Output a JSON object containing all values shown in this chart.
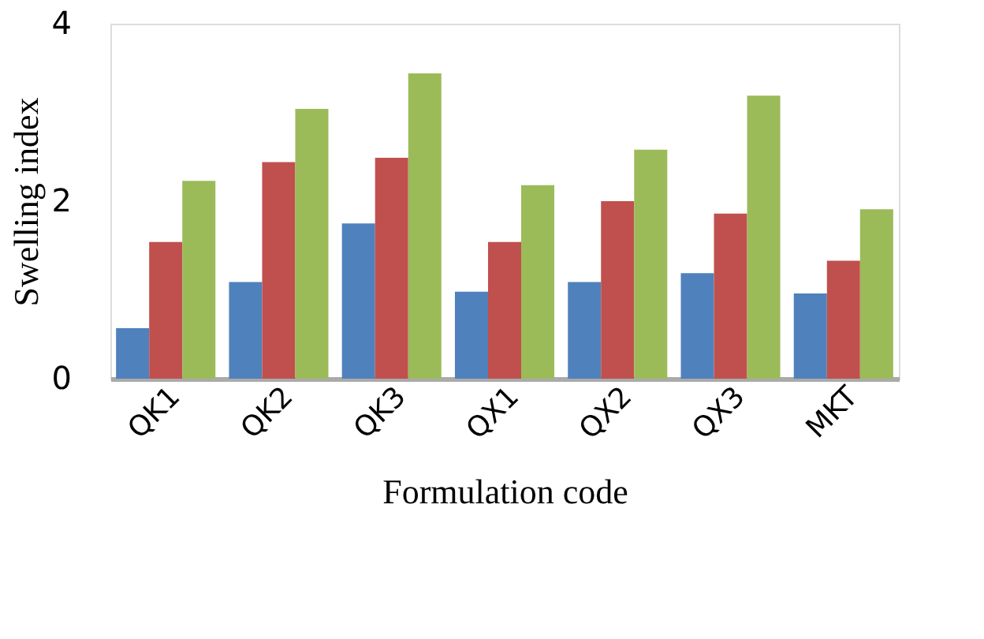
{
  "chart_data": {
    "type": "bar",
    "xlabel": "Formulation code",
    "ylabel": "Swelling index",
    "categories": [
      "QK1",
      "QK2",
      "QK3",
      "QX1",
      "QX2",
      "QX3",
      "MKT"
    ],
    "series": [
      {
        "color": "#4f81bd",
        "values": [
          0.57,
          1.09,
          1.75,
          0.98,
          1.09,
          1.19,
          0.96
        ]
      },
      {
        "color": "#c0504d",
        "values": [
          1.54,
          2.44,
          2.49,
          1.54,
          2.0,
          1.86,
          1.33
        ]
      },
      {
        "color": "#9bbb59",
        "values": [
          2.23,
          3.04,
          3.44,
          2.18,
          2.58,
          3.19,
          1.91
        ]
      }
    ],
    "ylim": [
      0,
      4
    ],
    "yticks": [
      0,
      2,
      4
    ],
    "grid": false,
    "legend": false
  }
}
